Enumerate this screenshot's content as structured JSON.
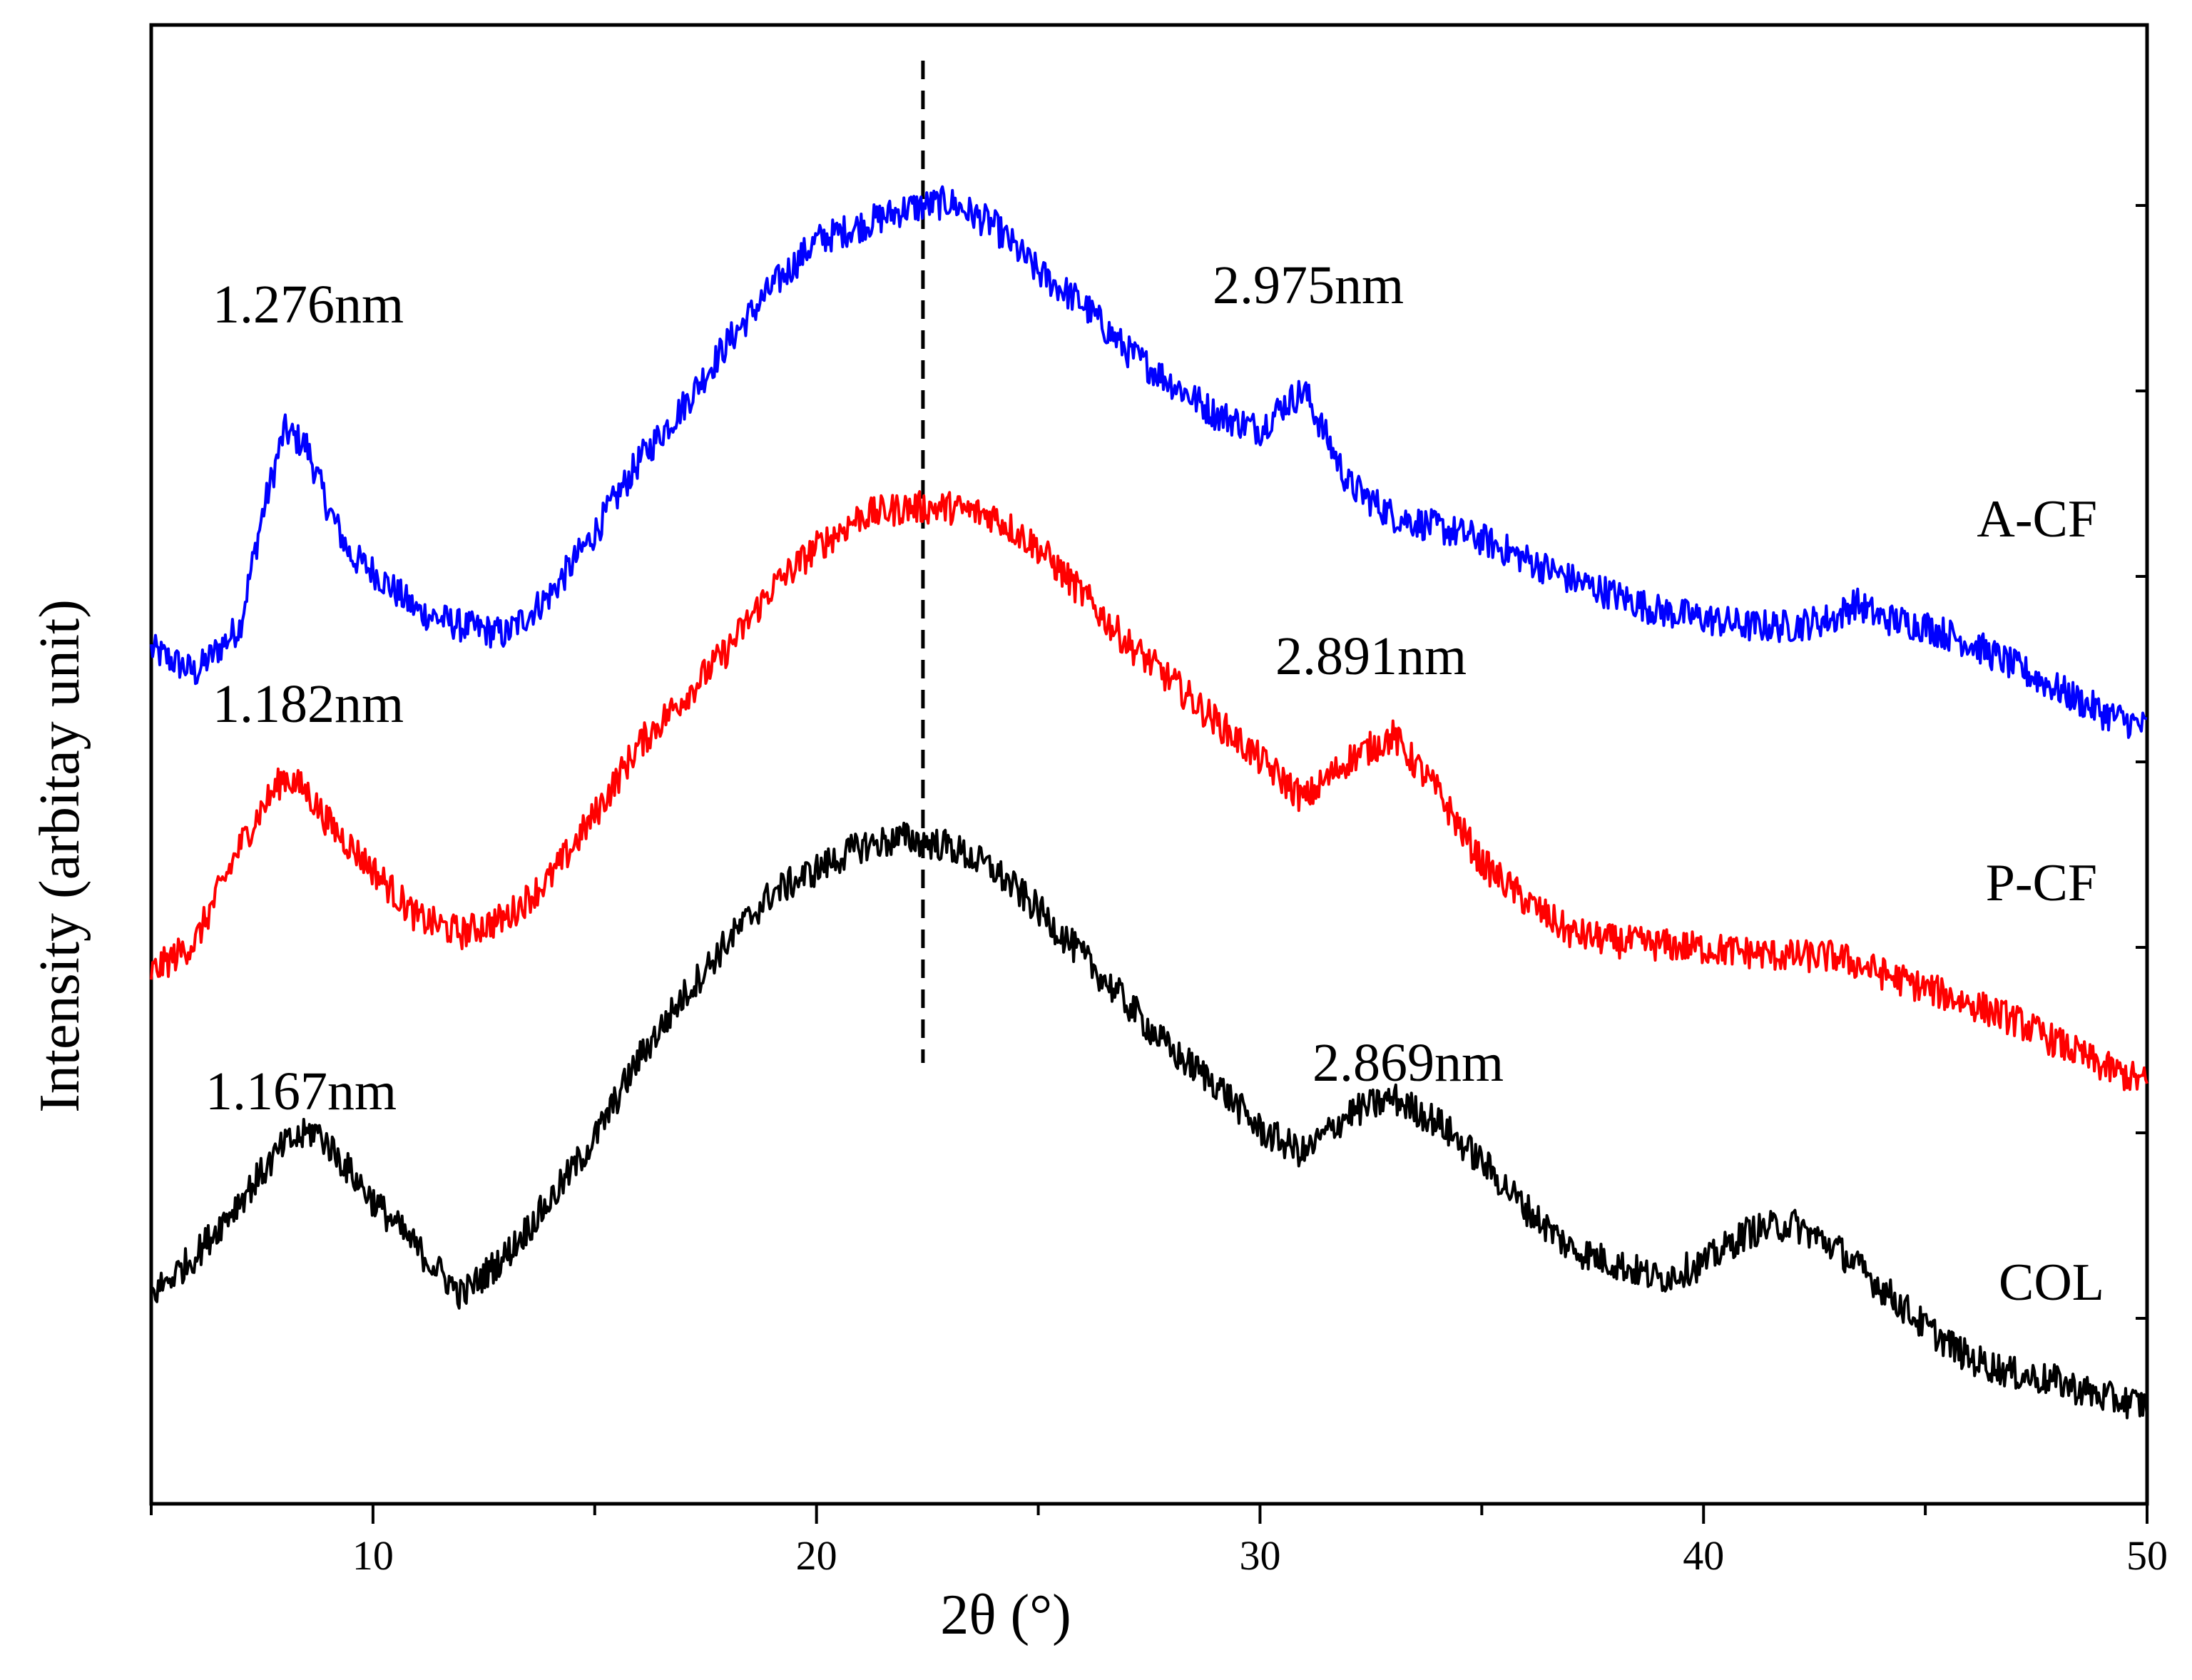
{
  "chart_data": {
    "type": "line",
    "title": "",
    "xlabel": "2θ (°)",
    "ylabel": "Intensity (arbitay unit)",
    "xlim": [
      5,
      50
    ],
    "ylim": [
      0,
      100
    ],
    "x_ticks": [
      10,
      20,
      30,
      40,
      50
    ],
    "x_tick_labels": [
      "10",
      "20",
      "30",
      "40",
      "50"
    ],
    "grid": false,
    "reference_line": {
      "x": 22.4,
      "style": "dashed"
    },
    "series": [
      {
        "name": "A-CF",
        "color": "#0000ff",
        "points": [
          [
            5.0,
            60.6
          ],
          [
            6.0,
            58.9
          ],
          [
            7.0,
            62.3
          ],
          [
            7.5,
            70.3
          ],
          [
            8.0,
            76.5
          ],
          [
            8.5,
            75.4
          ],
          [
            9.0,
            70.8
          ],
          [
            9.5,
            67.4
          ],
          [
            10.0,
            66.3
          ],
          [
            11.0,
            63.4
          ],
          [
            12.0,
            62.3
          ],
          [
            13.0,
            61.7
          ],
          [
            14.0,
            64.6
          ],
          [
            15.0,
            69.1
          ],
          [
            16.0,
            74.3
          ],
          [
            17.0,
            78.3
          ],
          [
            18.0,
            82.9
          ],
          [
            19.0,
            86.9
          ],
          [
            20.0,
            90.3
          ],
          [
            21.0,
            91.4
          ],
          [
            22.0,
            92.6
          ],
          [
            23.0,
            93.1
          ],
          [
            24.0,
            91.4
          ],
          [
            25.0,
            88.0
          ],
          [
            26.0,
            85.7
          ],
          [
            27.0,
            82.3
          ],
          [
            28.0,
            80.0
          ],
          [
            29.0,
            77.7
          ],
          [
            30.0,
            76.6
          ],
          [
            30.5,
            78.3
          ],
          [
            31.0,
            79.4
          ],
          [
            31.5,
            76.0
          ],
          [
            32.0,
            72.6
          ],
          [
            33.0,
            70.3
          ],
          [
            35.0,
            68.6
          ],
          [
            37.0,
            65.7
          ],
          [
            39.0,
            63.4
          ],
          [
            41.0,
            62.3
          ],
          [
            42.0,
            62.3
          ],
          [
            43.0,
            62.9
          ],
          [
            43.4,
            64.0
          ],
          [
            44.0,
            62.9
          ],
          [
            45.0,
            62.3
          ],
          [
            46.0,
            61.1
          ],
          [
            47.0,
            59.4
          ],
          [
            48.0,
            57.7
          ],
          [
            49.0,
            56.0
          ],
          [
            50.0,
            54.9
          ]
        ]
      },
      {
        "name": "P-CF",
        "color": "#ff0000",
        "points": [
          [
            5.0,
            37.1
          ],
          [
            6.0,
            39.4
          ],
          [
            7.0,
            46.3
          ],
          [
            7.5,
            49.1
          ],
          [
            8.0,
            51.4
          ],
          [
            8.5,
            50.3
          ],
          [
            9.0,
            48.0
          ],
          [
            10.0,
            44.6
          ],
          [
            11.0,
            41.1
          ],
          [
            12.0,
            40.0
          ],
          [
            13.0,
            41.1
          ],
          [
            14.0,
            44.0
          ],
          [
            15.0,
            48.6
          ],
          [
            16.0,
            53.7
          ],
          [
            17.0,
            57.1
          ],
          [
            18.0,
            60.6
          ],
          [
            19.0,
            65.1
          ],
          [
            20.0,
            68.0
          ],
          [
            21.0,
            70.3
          ],
          [
            22.0,
            70.9
          ],
          [
            23.0,
            70.9
          ],
          [
            24.0,
            70.3
          ],
          [
            25.0,
            68.0
          ],
          [
            26.0,
            64.6
          ],
          [
            27.0,
            61.1
          ],
          [
            28.0,
            58.3
          ],
          [
            29.0,
            55.4
          ],
          [
            30.0,
            52.6
          ],
          [
            31.0,
            49.7
          ],
          [
            32.0,
            52.6
          ],
          [
            33.0,
            54.3
          ],
          [
            34.0,
            50.3
          ],
          [
            35.0,
            45.1
          ],
          [
            36.0,
            42.3
          ],
          [
            37.0,
            40.0
          ],
          [
            38.0,
            39.4
          ],
          [
            40.0,
            38.9
          ],
          [
            42.0,
            38.3
          ],
          [
            43.0,
            38.3
          ],
          [
            44.0,
            37.1
          ],
          [
            45.0,
            36.0
          ],
          [
            46.0,
            34.9
          ],
          [
            47.0,
            33.7
          ],
          [
            48.0,
            32.0
          ],
          [
            49.0,
            30.3
          ],
          [
            50.0,
            29.1
          ]
        ]
      },
      {
        "name": "COL",
        "color": "#000000",
        "points": [
          [
            5.0,
            13.7
          ],
          [
            6.0,
            16.6
          ],
          [
            7.0,
            20.6
          ],
          [
            8.0,
            24.6
          ],
          [
            8.7,
            25.7
          ],
          [
            9.0,
            24.6
          ],
          [
            10.0,
            20.6
          ],
          [
            11.0,
            17.1
          ],
          [
            12.0,
            13.7
          ],
          [
            13.0,
            16.6
          ],
          [
            14.0,
            20.6
          ],
          [
            15.0,
            25.1
          ],
          [
            16.0,
            30.9
          ],
          [
            17.0,
            35.4
          ],
          [
            18.0,
            39.4
          ],
          [
            19.0,
            42.9
          ],
          [
            20.0,
            44.6
          ],
          [
            21.0,
            46.3
          ],
          [
            22.0,
            46.9
          ],
          [
            23.0,
            46.3
          ],
          [
            24.0,
            44.6
          ],
          [
            25.0,
            41.7
          ],
          [
            26.0,
            38.3
          ],
          [
            27.0,
            34.9
          ],
          [
            28.0,
            31.4
          ],
          [
            29.0,
            29.1
          ],
          [
            30.0,
            25.7
          ],
          [
            31.0,
            24.0
          ],
          [
            32.0,
            26.9
          ],
          [
            33.0,
            28.0
          ],
          [
            34.0,
            26.3
          ],
          [
            35.0,
            23.4
          ],
          [
            36.0,
            20.0
          ],
          [
            37.0,
            17.1
          ],
          [
            38.0,
            16.0
          ],
          [
            39.0,
            14.9
          ],
          [
            40.0,
            16.0
          ],
          [
            41.0,
            18.3
          ],
          [
            42.0,
            18.9
          ],
          [
            43.0,
            17.1
          ],
          [
            44.0,
            14.3
          ],
          [
            45.0,
            11.4
          ],
          [
            46.0,
            9.1
          ],
          [
            47.0,
            8.0
          ],
          [
            48.0,
            7.4
          ],
          [
            49.0,
            6.3
          ],
          [
            50.0,
            5.7
          ]
        ]
      }
    ],
    "series_labels": [
      "A-CF",
      "P-CF",
      "COL"
    ],
    "annotations": [
      "1.276nm",
      "2.975nm",
      "1.182nm",
      "2.891nm",
      "1.167nm",
      "2.869nm"
    ]
  }
}
